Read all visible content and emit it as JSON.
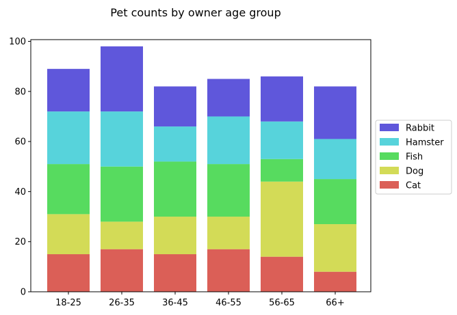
{
  "chart_data": {
    "type": "bar",
    "stacked": true,
    "title": "Pet counts by owner age group",
    "xlabel": "",
    "ylabel": "",
    "ylim": [
      0,
      100
    ],
    "yticks": [
      0,
      20,
      40,
      60,
      80,
      100
    ],
    "categories": [
      "18-25",
      "26-35",
      "36-45",
      "46-55",
      "56-65",
      "66+"
    ],
    "series": [
      {
        "name": "Cat",
        "color": "#db5f57",
        "values": [
          15,
          17,
          15,
          17,
          14,
          8
        ]
      },
      {
        "name": "Dog",
        "color": "#d3db57",
        "values": [
          16,
          11,
          15,
          13,
          30,
          19
        ]
      },
      {
        "name": "Fish",
        "color": "#57db5f",
        "values": [
          20,
          22,
          22,
          21,
          9,
          18
        ]
      },
      {
        "name": "Hamster",
        "color": "#57d3db",
        "values": [
          21,
          22,
          14,
          19,
          15,
          16
        ]
      },
      {
        "name": "Rabbit",
        "color": "#5f57db",
        "values": [
          17,
          26,
          16,
          15,
          18,
          21
        ]
      }
    ],
    "grid": false,
    "legend_position": "right"
  }
}
